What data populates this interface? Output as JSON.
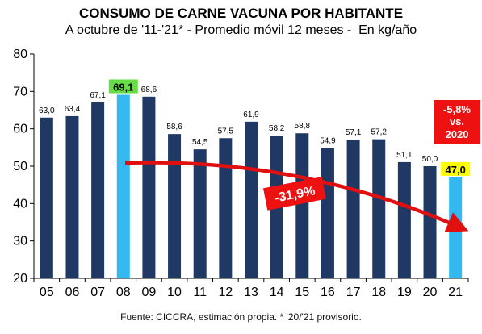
{
  "chart_data": {
    "type": "bar",
    "title": "CONSUMO DE CARNE VACUNA POR HABITANTE",
    "subtitle": "A octubre de '11-'21* - Promedio móvil 12 meses -  En kg/año",
    "categories": [
      "05",
      "06",
      "07",
      "08",
      "09",
      "10",
      "11",
      "12",
      "13",
      "14",
      "15",
      "16",
      "17",
      "18",
      "19",
      "20",
      "21"
    ],
    "values": [
      63.0,
      63.4,
      67.1,
      69.1,
      68.6,
      58.6,
      54.5,
      57.5,
      61.9,
      58.2,
      58.8,
      54.9,
      57.1,
      57.2,
      51.1,
      50.0,
      47.0
    ],
    "value_labels": [
      "63,0",
      "63,4",
      "67,1",
      "69,1",
      "68,6",
      "58,6",
      "54,5",
      "57,5",
      "61,9",
      "58,2",
      "58,8",
      "54,9",
      "57,1",
      "57,2",
      "51,1",
      "50,0",
      "47,0"
    ],
    "yticks": [
      20,
      30,
      40,
      50,
      60,
      70,
      80
    ],
    "ylim": [
      20,
      80
    ],
    "highlighted_categories": [
      "08",
      "21"
    ],
    "annotations": {
      "trend_change": "-31,9%",
      "vs_prev_line1": "-5,8%",
      "vs_prev_line2": "vs.",
      "vs_prev_line3": "2020"
    },
    "footer": "Fuente: CICCRA, estimación propia. * '20/'21 provisorio.",
    "colors": {
      "bar": "#1f3864",
      "highlight_bar": "#33b8f0",
      "arrow": "#e01010",
      "max_label_bg": "#66dd44",
      "last_label_bg": "#ffff00",
      "change_box": "#ee1111"
    }
  }
}
